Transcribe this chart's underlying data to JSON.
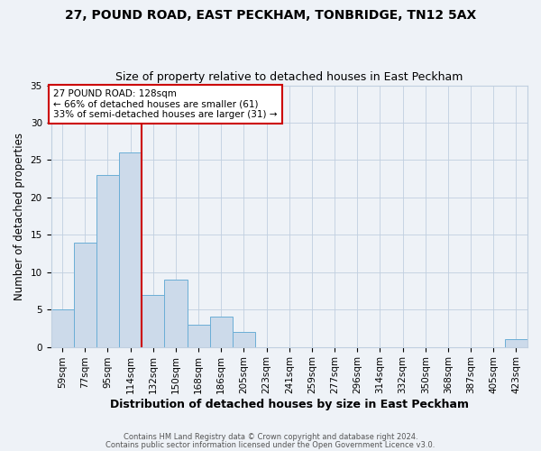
{
  "title": "27, POUND ROAD, EAST PECKHAM, TONBRIDGE, TN12 5AX",
  "subtitle": "Size of property relative to detached houses in East Peckham",
  "xlabel": "Distribution of detached houses by size in East Peckham",
  "ylabel": "Number of detached properties",
  "bin_labels": [
    "59sqm",
    "77sqm",
    "95sqm",
    "114sqm",
    "132sqm",
    "150sqm",
    "168sqm",
    "186sqm",
    "205sqm",
    "223sqm",
    "241sqm",
    "259sqm",
    "277sqm",
    "296sqm",
    "314sqm",
    "332sqm",
    "350sqm",
    "368sqm",
    "387sqm",
    "405sqm",
    "423sqm"
  ],
  "bin_values": [
    5,
    14,
    23,
    26,
    7,
    9,
    3,
    4,
    2,
    0,
    0,
    0,
    0,
    0,
    0,
    0,
    0,
    0,
    0,
    0,
    1
  ],
  "bar_color": "#ccdaea",
  "bar_edge_color": "#6baed6",
  "annotation_text_line1": "27 POUND ROAD: 128sqm",
  "annotation_text_line2": "← 66% of detached houses are smaller (61)",
  "annotation_text_line3": "33% of semi-detached houses are larger (31) →",
  "annotation_box_color": "#ffffff",
  "annotation_box_edge_color": "#cc0000",
  "vline_color": "#cc0000",
  "vline_x_index": 4,
  "ylim": [
    0,
    35
  ],
  "yticks": [
    0,
    5,
    10,
    15,
    20,
    25,
    30,
    35
  ],
  "title_fontsize": 10,
  "subtitle_fontsize": 9,
  "xlabel_fontsize": 9,
  "ylabel_fontsize": 8.5,
  "tick_fontsize": 7.5,
  "footnote_line1": "Contains HM Land Registry data © Crown copyright and database right 2024.",
  "footnote_line2": "Contains public sector information licensed under the Open Government Licence v3.0.",
  "background_color": "#eef2f7",
  "grid_color": "#c0cfe0"
}
